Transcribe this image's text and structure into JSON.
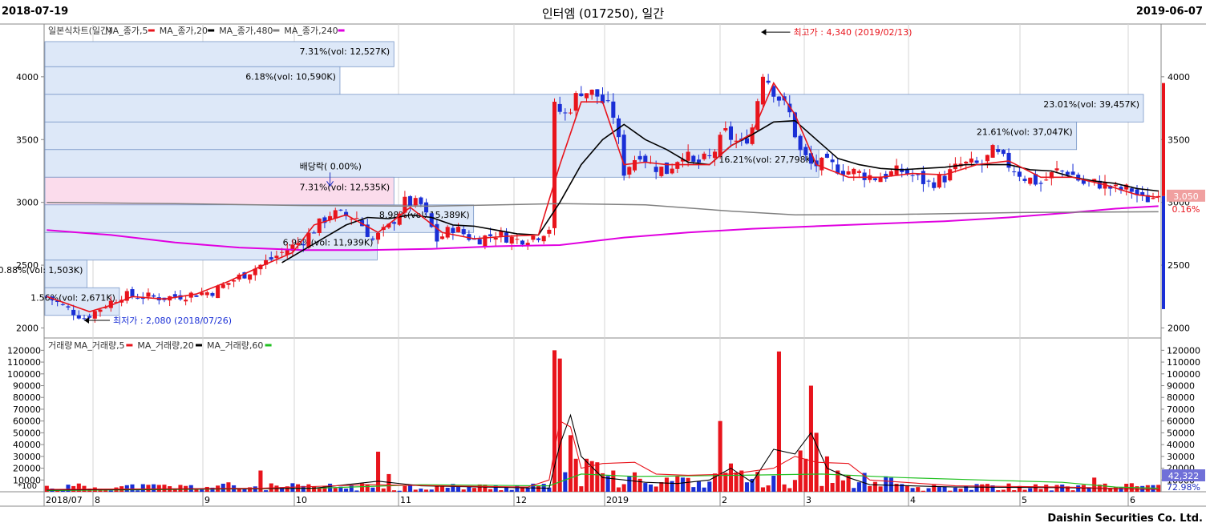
{
  "header": {
    "start_date": "2018-07-19",
    "title": "인터엠 (017250), 일간",
    "end_date": "2019-06-07"
  },
  "footer": {
    "company": "Daishin Securities Co. Ltd."
  },
  "colors": {
    "up": "#e8141c",
    "down": "#1a2fd6",
    "ma5": "#e8141c",
    "ma20": "#000000",
    "ma480": "#808080",
    "ma240": "#e000e0",
    "vol_ma60": "#20c020",
    "box": "#dde8f8",
    "box_pink": "#fbdcec",
    "border": "#7a98c8"
  },
  "chart_data": [
    {
      "type": "candlestick",
      "title": "",
      "legend": [
        {
          "label": "일본식차트(일간)",
          "color": ""
        },
        {
          "label": "MA_종가,5",
          "color": "#e8141c"
        },
        {
          "label": "MA_종가,20",
          "color": "#000000"
        },
        {
          "label": "MA_종가,480",
          "color": "#808080"
        },
        {
          "label": "MA_종가,240",
          "color": "#e000e0"
        }
      ],
      "ylim": [
        1920,
        4420
      ],
      "y_ticks": [
        2000,
        2500,
        3000,
        3500,
        4000
      ],
      "x_ticks": [
        "2018/07",
        "8",
        "9",
        "10",
        "11",
        "12",
        "2019",
        "2",
        "3",
        "4",
        "5",
        "6"
      ],
      "last_price_label": "3,050",
      "last_change_label": "0.16%",
      "annotations": {
        "high": "최고가 : 4,340 (2019/02/13)",
        "low": "최저가 : 2,080 (2018/07/26)",
        "dividend": "배당락( 0.00%)"
      },
      "volume_profile": [
        {
          "low": 4080,
          "high": 4280,
          "label": "7.31%(vol: 12,527K)"
        },
        {
          "low": 3860,
          "high": 4080,
          "label": "6.18%(vol: 10,590K)"
        },
        {
          "low": 3640,
          "high": 3860,
          "label": "23.01%(vol: 39,457K)"
        },
        {
          "low": 3420,
          "high": 3640,
          "label": "21.61%(vol: 37,047K)"
        },
        {
          "low": 3200,
          "high": 3420,
          "label": "16.21%(vol: 27,798K)"
        },
        {
          "low": 2980,
          "high": 3200,
          "label": "7.31%(vol: 12,535K)"
        },
        {
          "low": 2760,
          "high": 2980,
          "label": "8.98%(vol: 15,389K)"
        },
        {
          "low": 2540,
          "high": 2760,
          "label": "6.96%(vol: 11,939K)"
        },
        {
          "low": 2320,
          "high": 2540,
          "label": "0.88%(vol: 1,503K)"
        },
        {
          "low": 2100,
          "high": 2320,
          "label": "1.56%(vol: 2,671K)"
        }
      ],
      "price_path": [
        [
          0,
          2250
        ],
        [
          4,
          2150
        ],
        [
          7,
          2080
        ],
        [
          14,
          2260
        ],
        [
          22,
          2240
        ],
        [
          31,
          2290
        ],
        [
          40,
          2500
        ],
        [
          48,
          2700
        ],
        [
          53,
          2910
        ],
        [
          58,
          2880
        ],
        [
          61,
          2700
        ],
        [
          64,
          2800
        ],
        [
          67,
          3000
        ],
        [
          70,
          2980
        ],
        [
          73,
          2700
        ],
        [
          76,
          2800
        ],
        [
          80,
          2700
        ],
        [
          84,
          2750
        ],
        [
          88,
          2700
        ],
        [
          92,
          2740
        ],
        [
          94,
          2800
        ],
        [
          95,
          3750
        ],
        [
          97,
          3700
        ],
        [
          100,
          3900
        ],
        [
          103,
          3850
        ],
        [
          106,
          3700
        ],
        [
          108,
          3250
        ],
        [
          111,
          3400
        ],
        [
          113,
          3300
        ],
        [
          116,
          3250
        ],
        [
          119,
          3400
        ],
        [
          121,
          3300
        ],
        [
          124,
          3350
        ],
        [
          127,
          3550
        ],
        [
          130,
          3450
        ],
        [
          132,
          3600
        ],
        [
          134,
          4050
        ],
        [
          136,
          3900
        ],
        [
          139,
          3700
        ],
        [
          141,
          3400
        ],
        [
          143,
          3300
        ],
        [
          146,
          3300
        ],
        [
          150,
          3250
        ],
        [
          155,
          3200
        ],
        [
          160,
          3250
        ],
        [
          165,
          3150
        ],
        [
          168,
          3200
        ],
        [
          171,
          3300
        ],
        [
          175,
          3300
        ],
        [
          177,
          3400
        ],
        [
          180,
          3300
        ],
        [
          183,
          3200
        ],
        [
          186,
          3150
        ],
        [
          189,
          3250
        ],
        [
          191,
          3250
        ],
        [
          194,
          3150
        ],
        [
          197,
          3150
        ],
        [
          200,
          3100
        ],
        [
          203,
          3100
        ],
        [
          205,
          3020
        ],
        [
          208,
          3050
        ]
      ],
      "ma5": [
        [
          0,
          2250
        ],
        [
          8,
          2130
        ],
        [
          12,
          2180
        ],
        [
          16,
          2250
        ],
        [
          22,
          2230
        ],
        [
          28,
          2270
        ],
        [
          34,
          2370
        ],
        [
          40,
          2490
        ],
        [
          46,
          2600
        ],
        [
          50,
          2820
        ],
        [
          56,
          2900
        ],
        [
          62,
          2760
        ],
        [
          68,
          2960
        ],
        [
          74,
          2760
        ],
        [
          80,
          2710
        ],
        [
          86,
          2730
        ],
        [
          92,
          2740
        ],
        [
          96,
          3300
        ],
        [
          100,
          3800
        ],
        [
          104,
          3800
        ],
        [
          108,
          3300
        ],
        [
          112,
          3320
        ],
        [
          116,
          3300
        ],
        [
          120,
          3300
        ],
        [
          124,
          3300
        ],
        [
          128,
          3450
        ],
        [
          132,
          3550
        ],
        [
          136,
          3950
        ],
        [
          140,
          3700
        ],
        [
          144,
          3300
        ],
        [
          150,
          3200
        ],
        [
          156,
          3200
        ],
        [
          162,
          3230
        ],
        [
          168,
          3220
        ],
        [
          174,
          3300
        ],
        [
          180,
          3330
        ],
        [
          186,
          3200
        ],
        [
          192,
          3200
        ],
        [
          198,
          3140
        ],
        [
          204,
          3060
        ],
        [
          208,
          3040
        ]
      ],
      "ma20": [
        [
          44,
          2520
        ],
        [
          48,
          2620
        ],
        [
          52,
          2720
        ],
        [
          56,
          2820
        ],
        [
          60,
          2880
        ],
        [
          64,
          2870
        ],
        [
          68,
          2900
        ],
        [
          72,
          2880
        ],
        [
          76,
          2820
        ],
        [
          80,
          2810
        ],
        [
          84,
          2780
        ],
        [
          88,
          2750
        ],
        [
          92,
          2740
        ],
        [
          96,
          3000
        ],
        [
          100,
          3300
        ],
        [
          104,
          3500
        ],
        [
          108,
          3620
        ],
        [
          112,
          3500
        ],
        [
          116,
          3420
        ],
        [
          120,
          3320
        ],
        [
          124,
          3300
        ],
        [
          128,
          3450
        ],
        [
          132,
          3540
        ],
        [
          136,
          3640
        ],
        [
          140,
          3650
        ],
        [
          144,
          3500
        ],
        [
          148,
          3350
        ],
        [
          152,
          3300
        ],
        [
          156,
          3270
        ],
        [
          160,
          3260
        ],
        [
          164,
          3270
        ],
        [
          168,
          3280
        ],
        [
          172,
          3300
        ],
        [
          176,
          3300
        ],
        [
          180,
          3300
        ],
        [
          184,
          3260
        ],
        [
          188,
          3250
        ],
        [
          192,
          3200
        ],
        [
          196,
          3170
        ],
        [
          200,
          3150
        ],
        [
          204,
          3110
        ],
        [
          208,
          3090
        ]
      ],
      "ma480": [
        [
          0,
          3000
        ],
        [
          24,
          2990
        ],
        [
          48,
          2975
        ],
        [
          72,
          2970
        ],
        [
          96,
          2990
        ],
        [
          112,
          2980
        ],
        [
          128,
          2930
        ],
        [
          140,
          2900
        ],
        [
          160,
          2905
        ],
        [
          184,
          2920
        ],
        [
          208,
          2925
        ]
      ],
      "ma240": [
        [
          0,
          2780
        ],
        [
          12,
          2740
        ],
        [
          24,
          2680
        ],
        [
          36,
          2640
        ],
        [
          48,
          2620
        ],
        [
          60,
          2620
        ],
        [
          72,
          2630
        ],
        [
          84,
          2650
        ],
        [
          96,
          2660
        ],
        [
          108,
          2720
        ],
        [
          120,
          2760
        ],
        [
          132,
          2790
        ],
        [
          144,
          2810
        ],
        [
          156,
          2830
        ],
        [
          168,
          2850
        ],
        [
          180,
          2880
        ],
        [
          192,
          2920
        ],
        [
          200,
          2950
        ],
        [
          208,
          2970
        ]
      ]
    },
    {
      "type": "bar",
      "title": "",
      "legend": [
        {
          "label": "거래량",
          "color": ""
        },
        {
          "label": "MA_거래량,5",
          "color": "#e8141c"
        },
        {
          "label": "MA_거래량,20",
          "color": "#000000"
        },
        {
          "label": "MA_거래량,60",
          "color": "#20c020"
        }
      ],
      "unit_label": "*100",
      "ylim": [
        0,
        125000
      ],
      "y_ticks": [
        10000,
        20000,
        30000,
        40000,
        50000,
        60000,
        70000,
        80000,
        90000,
        100000,
        110000,
        120000
      ],
      "last_volume_label": "42,322",
      "last_pct_label": "72.98%",
      "spikes": [
        [
          7,
          5000
        ],
        [
          22,
          6000
        ],
        [
          34,
          8000
        ],
        [
          40,
          18000
        ],
        [
          62,
          34000
        ],
        [
          64,
          15000
        ],
        [
          95,
          120000
        ],
        [
          96,
          113000
        ],
        [
          98,
          48000
        ],
        [
          99,
          28000
        ],
        [
          101,
          28000
        ],
        [
          102,
          26000
        ],
        [
          103,
          25000
        ],
        [
          106,
          18000
        ],
        [
          111,
          11000
        ],
        [
          116,
          12000
        ],
        [
          126,
          60000
        ],
        [
          128,
          24000
        ],
        [
          130,
          18000
        ],
        [
          137,
          119000
        ],
        [
          141,
          35000
        ],
        [
          142,
          28000
        ],
        [
          143,
          90000
        ],
        [
          144,
          50000
        ],
        [
          146,
          30000
        ],
        [
          148,
          18000
        ],
        [
          150,
          14000
        ],
        [
          180,
          7000
        ],
        [
          196,
          12000
        ]
      ],
      "ma5": [
        [
          0,
          2000
        ],
        [
          40,
          3000
        ],
        [
          60,
          6000
        ],
        [
          90,
          4000
        ],
        [
          94,
          10000
        ],
        [
          96,
          60000
        ],
        [
          98,
          55000
        ],
        [
          100,
          20000
        ],
        [
          104,
          24000
        ],
        [
          110,
          25000
        ],
        [
          114,
          15000
        ],
        [
          120,
          14000
        ],
        [
          128,
          15000
        ],
        [
          136,
          20000
        ],
        [
          140,
          30000
        ],
        [
          144,
          25000
        ],
        [
          150,
          24000
        ],
        [
          154,
          10000
        ],
        [
          170,
          5000
        ],
        [
          190,
          4000
        ],
        [
          208,
          2000
        ]
      ],
      "ma20": [
        [
          0,
          1500
        ],
        [
          50,
          3000
        ],
        [
          62,
          9000
        ],
        [
          70,
          5000
        ],
        [
          94,
          3000
        ],
        [
          96,
          40000
        ],
        [
          98,
          65000
        ],
        [
          100,
          30000
        ],
        [
          104,
          12000
        ],
        [
          112,
          8000
        ],
        [
          118,
          7000
        ],
        [
          124,
          10000
        ],
        [
          128,
          20000
        ],
        [
          132,
          8000
        ],
        [
          136,
          36000
        ],
        [
          140,
          32000
        ],
        [
          143,
          50000
        ],
        [
          146,
          20000
        ],
        [
          150,
          12000
        ],
        [
          154,
          6000
        ],
        [
          170,
          4000
        ],
        [
          190,
          3500
        ],
        [
          208,
          2000
        ]
      ],
      "ma60": [
        [
          0,
          1000
        ],
        [
          50,
          3000
        ],
        [
          70,
          6000
        ],
        [
          94,
          5000
        ],
        [
          100,
          15000
        ],
        [
          110,
          13000
        ],
        [
          130,
          14000
        ],
        [
          145,
          15000
        ],
        [
          160,
          12000
        ],
        [
          175,
          10000
        ],
        [
          190,
          8000
        ],
        [
          200,
          4000
        ],
        [
          208,
          3000
        ]
      ]
    }
  ]
}
